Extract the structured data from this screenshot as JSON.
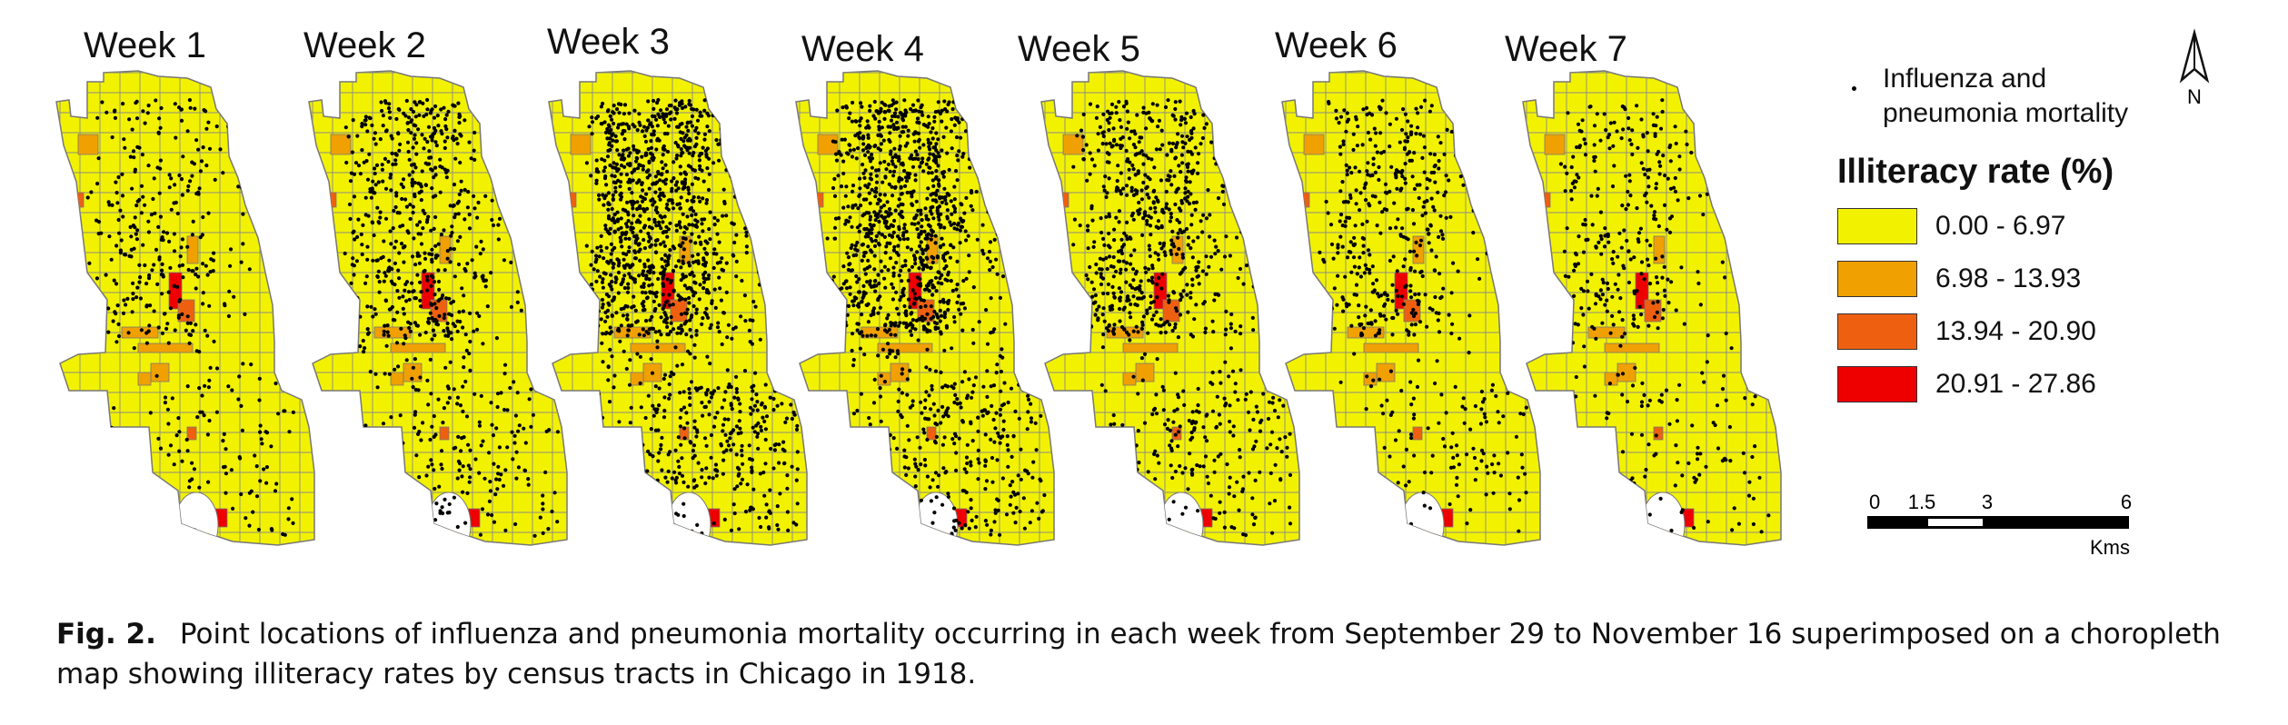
{
  "figure": {
    "weeks": [
      {
        "label": "Week 1",
        "deaths_density": 0.3
      },
      {
        "label": "Week 2",
        "deaths_density": 0.55
      },
      {
        "label": "Week 3",
        "deaths_density": 1.0
      },
      {
        "label": "Week 4",
        "deaths_density": 0.95
      },
      {
        "label": "Week 5",
        "deaths_density": 0.6
      },
      {
        "label": "Week 6",
        "deaths_density": 0.38
      },
      {
        "label": "Week 7",
        "deaths_density": 0.28
      }
    ],
    "legend": {
      "point_label": "Influenza and pneumonia mortality",
      "title": "Illiteracy rate (%)",
      "classes": [
        {
          "label": "0.00 - 6.97",
          "color": "#f2f200"
        },
        {
          "label": "6.98 - 13.93",
          "color": "#f0a000"
        },
        {
          "label": "13.94 - 20.90",
          "color": "#ee6010"
        },
        {
          "label": "20.91 - 27.86",
          "color": "#ee0000"
        }
      ]
    },
    "north_arrow": {
      "label": "N"
    },
    "scale_bar": {
      "ticks": [
        "0",
        "1.5",
        "3",
        "6"
      ],
      "unit": "Kms"
    },
    "caption": {
      "label": "Fig. 2.",
      "text": "Point locations of influenza and pneumonia mortality occurring in each week from September 29 to November 16 superimposed on a choropleth map showing illiteracy rates by census tracts in Chicago in 1918."
    }
  }
}
